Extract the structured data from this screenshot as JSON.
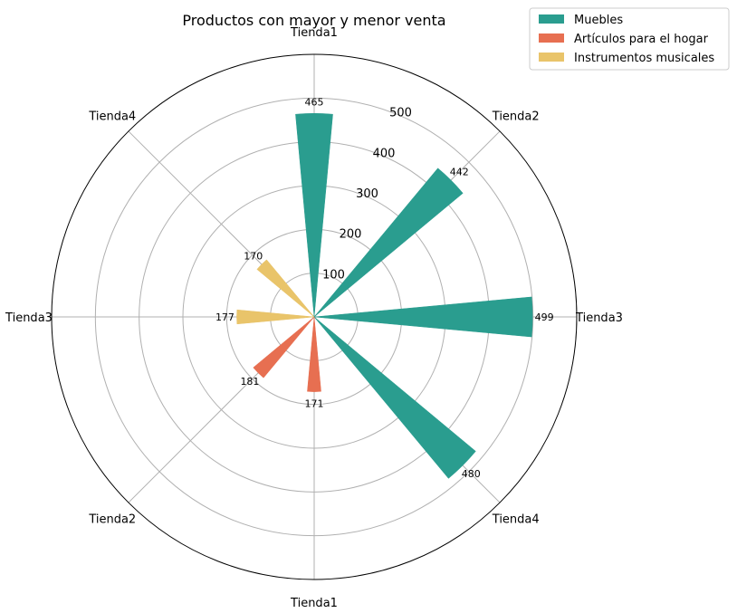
{
  "chart_data": {
    "type": "polar-bar",
    "title": "Productos con mayor y menor venta",
    "angle_labels": [
      "Tienda1",
      "Tienda2",
      "Tienda3",
      "Tienda4",
      "Tienda1",
      "Tienda2",
      "Tienda3",
      "Tienda4"
    ],
    "radial_ticks": [
      100,
      200,
      300,
      400,
      500
    ],
    "rlim": [
      0,
      600
    ],
    "grid": true,
    "legend_position": "top-right",
    "series": [
      {
        "name": "Muebles",
        "color": "#2a9d8f",
        "slots": [
          0,
          1,
          2,
          3
        ],
        "categories": [
          "Tienda1",
          "Tienda2",
          "Tienda3",
          "Tienda4"
        ],
        "values": [
          465,
          442,
          499,
          480
        ]
      },
      {
        "name": "Artículos para el hogar",
        "color": "#e76f51",
        "slots": [
          4,
          5
        ],
        "categories": [
          "Tienda1",
          "Tienda2"
        ],
        "values": [
          171,
          181
        ]
      },
      {
        "name": "Instrumentos musicales",
        "color": "#e9c46a",
        "slots": [
          6,
          7
        ],
        "categories": [
          "Tienda3",
          "Tienda4"
        ],
        "values": [
          177,
          170
        ]
      }
    ]
  }
}
